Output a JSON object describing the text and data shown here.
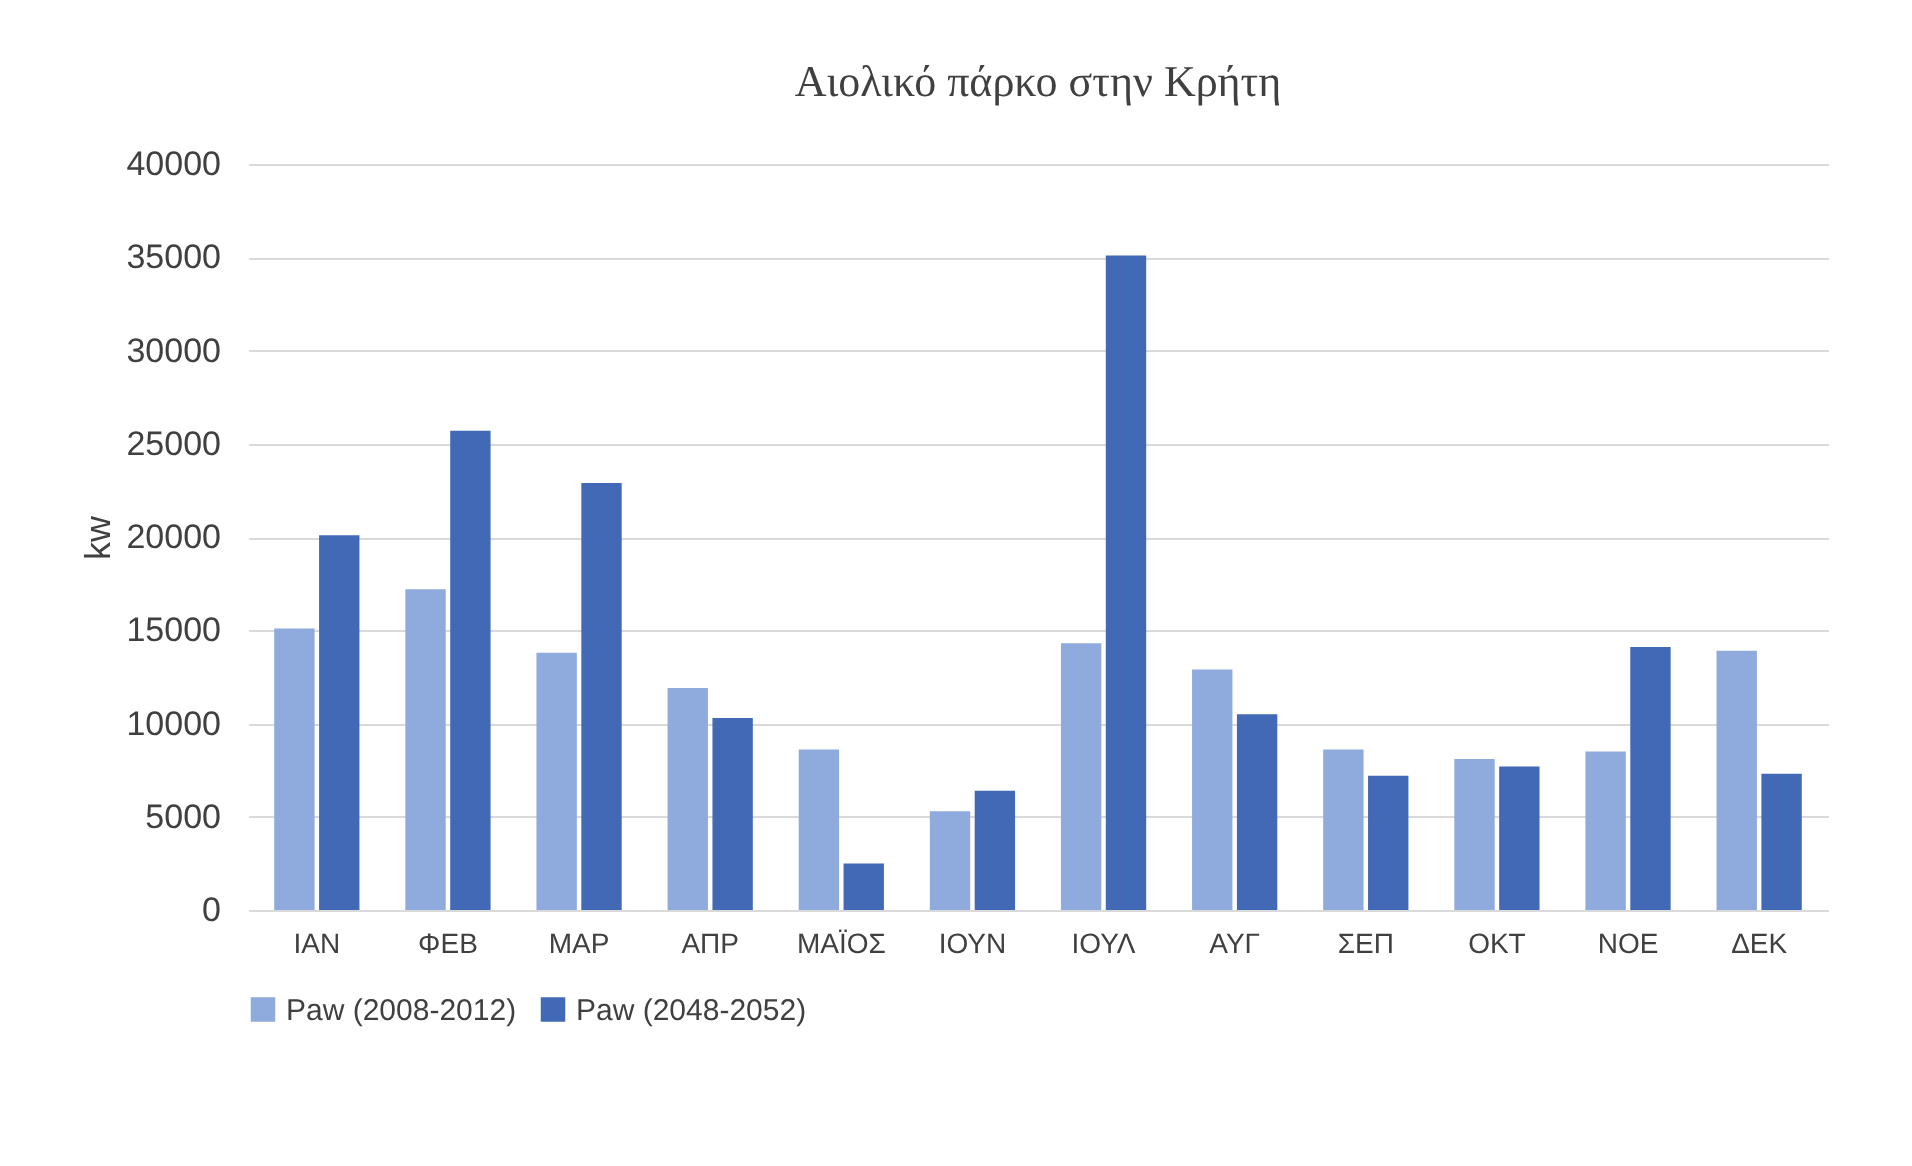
{
  "chart_data": {
    "type": "bar",
    "title": "Αιολικό πάρκο στην Κρήτη",
    "ylabel": "kw",
    "categories": [
      "ΙΑΝ",
      "ΦΕΒ",
      "ΜΑΡ",
      "ΑΠΡ",
      "ΜΑΪΟΣ",
      "ΙΟΥΝ",
      "ΙΟΥΛ",
      "ΑΥΓ",
      "ΣΕΠ",
      "ΟΚΤ",
      "ΝΟΕ",
      "ΔΕΚ"
    ],
    "series": [
      {
        "name": "Paw (2008-2012)",
        "color": "#8faadc",
        "values": [
          15100,
          17200,
          13800,
          11900,
          8600,
          5300,
          14300,
          12900,
          8600,
          8100,
          8500,
          13900
        ]
      },
      {
        "name": "Paw (2048-2052)",
        "color": "#4169b5",
        "values": [
          20100,
          25700,
          22900,
          10300,
          2500,
          6400,
          35100,
          10500,
          7200,
          7700,
          14100,
          7300
        ]
      }
    ],
    "ylim": [
      0,
      40000
    ],
    "yticks": [
      0,
      5000,
      10000,
      15000,
      20000,
      25000,
      30000,
      35000,
      40000
    ],
    "grid": "y",
    "legend": "bottom"
  }
}
